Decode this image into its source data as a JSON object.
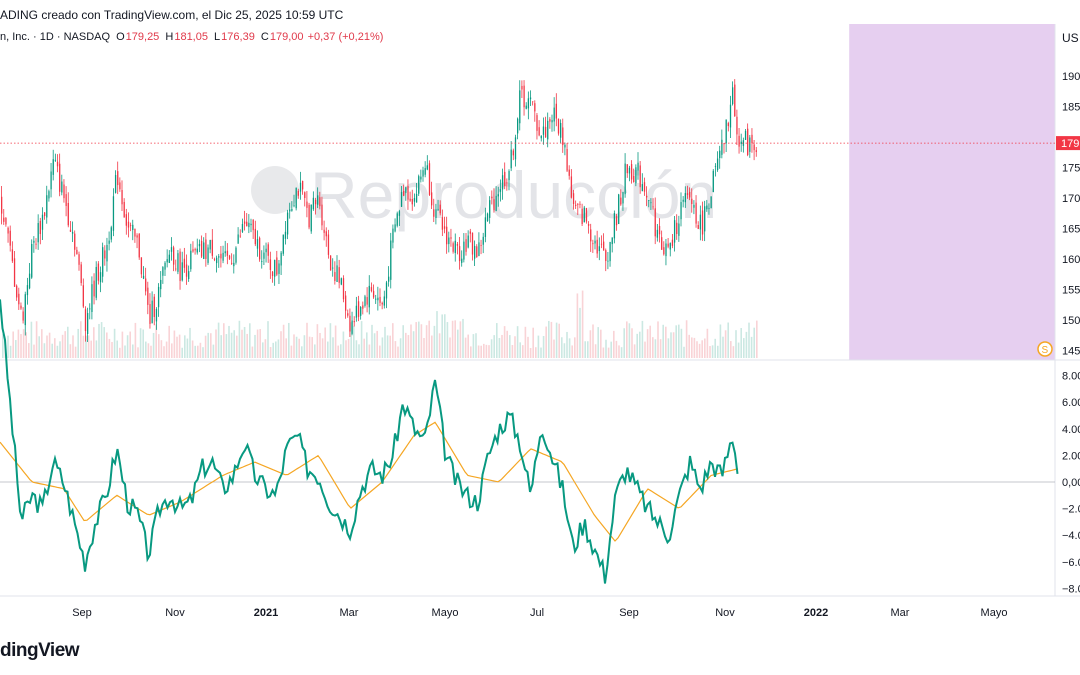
{
  "header": {
    "text": "ADING creado con TradingView.com, el Dic 25, 2025 10:59 UTC"
  },
  "legend": {
    "symbol": "n, Inc. · 1D · NASDAQ",
    "o_label": "O",
    "o": "179,25",
    "h_label": "H",
    "h": "181,05",
    "l_label": "L",
    "l": "176,39",
    "c_label": "C",
    "c": "179,00",
    "change": "+0,37 (+0,21%)"
  },
  "currency": "US",
  "watermark": "Reproducción",
  "brand": "dingView",
  "colors": {
    "up": "#089981",
    "down": "#f23645",
    "osc": "#089981",
    "signal": "#f5a623",
    "highlight": "#e6cff0",
    "last_price": "#f23645"
  },
  "chart_data": [
    {
      "type": "candlestick",
      "price_axis": {
        "ticks": [
          "190",
          "185",
          "180",
          "175",
          "170",
          "165",
          "160",
          "155",
          "150",
          "145"
        ],
        "ylim": [
          144,
          192
        ]
      },
      "last_price_label": "179",
      "current_price": 179.0,
      "x_axis": {
        "ticks": [
          "Sep",
          "Nov",
          "2021",
          "Mar",
          "Mayo",
          "Jul",
          "Sep",
          "Nov",
          "2022",
          "Mar",
          "Mayo"
        ],
        "bold_ticks": [
          "2021",
          "2022"
        ]
      },
      "price_path": [
        {
          "d": "2020-07-27",
          "c": 160
        },
        {
          "d": "2020-08-03",
          "c": 150
        },
        {
          "d": "2020-08-10",
          "c": 162
        },
        {
          "d": "2020-08-17",
          "c": 167
        },
        {
          "d": "2020-08-24",
          "c": 176
        },
        {
          "d": "2020-08-31",
          "c": 170
        },
        {
          "d": "2020-09-07",
          "c": 163
        },
        {
          "d": "2020-09-14",
          "c": 150
        },
        {
          "d": "2020-09-21",
          "c": 157
        },
        {
          "d": "2020-09-28",
          "c": 162
        },
        {
          "d": "2020-10-05",
          "c": 174
        },
        {
          "d": "2020-10-12",
          "c": 165
        },
        {
          "d": "2020-10-19",
          "c": 162
        },
        {
          "d": "2020-10-26",
          "c": 150
        },
        {
          "d": "2020-11-02",
          "c": 155
        },
        {
          "d": "2020-11-09",
          "c": 162
        },
        {
          "d": "2020-11-16",
          "c": 158
        },
        {
          "d": "2020-11-23",
          "c": 160
        },
        {
          "d": "2020-11-30",
          "c": 161
        },
        {
          "d": "2020-12-07",
          "c": 162
        },
        {
          "d": "2020-12-14",
          "c": 159
        },
        {
          "d": "2020-12-21",
          "c": 161
        },
        {
          "d": "2020-12-28",
          "c": 166
        },
        {
          "d": "2021-01-04",
          "c": 163
        },
        {
          "d": "2021-01-11",
          "c": 160
        },
        {
          "d": "2021-01-18",
          "c": 158
        },
        {
          "d": "2021-01-25",
          "c": 168
        },
        {
          "d": "2021-02-01",
          "c": 172
        },
        {
          "d": "2021-02-08",
          "c": 167
        },
        {
          "d": "2021-02-15",
          "c": 170
        },
        {
          "d": "2021-02-22",
          "c": 160
        },
        {
          "d": "2021-03-01",
          "c": 156
        },
        {
          "d": "2021-03-08",
          "c": 149
        },
        {
          "d": "2021-03-15",
          "c": 153
        },
        {
          "d": "2021-03-22",
          "c": 155
        },
        {
          "d": "2021-03-29",
          "c": 152
        },
        {
          "d": "2021-04-05",
          "c": 164
        },
        {
          "d": "2021-04-12",
          "c": 172
        },
        {
          "d": "2021-04-19",
          "c": 170
        },
        {
          "d": "2021-04-26",
          "c": 176
        },
        {
          "d": "2021-05-03",
          "c": 167
        },
        {
          "d": "2021-05-10",
          "c": 164
        },
        {
          "d": "2021-05-17",
          "c": 161
        },
        {
          "d": "2021-05-24",
          "c": 163
        },
        {
          "d": "2021-05-31",
          "c": 161
        },
        {
          "d": "2021-06-07",
          "c": 168
        },
        {
          "d": "2021-06-14",
          "c": 172
        },
        {
          "d": "2021-06-21",
          "c": 175
        },
        {
          "d": "2021-06-28",
          "c": 187
        },
        {
          "d": "2021-07-05",
          "c": 185
        },
        {
          "d": "2021-07-12",
          "c": 180
        },
        {
          "d": "2021-07-19",
          "c": 184
        },
        {
          "d": "2021-07-26",
          "c": 180
        },
        {
          "d": "2021-08-02",
          "c": 168
        },
        {
          "d": "2021-08-09",
          "c": 167
        },
        {
          "d": "2021-08-16",
          "c": 163
        },
        {
          "d": "2021-08-23",
          "c": 160
        },
        {
          "d": "2021-08-30",
          "c": 167
        },
        {
          "d": "2021-09-06",
          "c": 175
        },
        {
          "d": "2021-09-13",
          "c": 174
        },
        {
          "d": "2021-09-20",
          "c": 171
        },
        {
          "d": "2021-09-27",
          "c": 163
        },
        {
          "d": "2021-10-04",
          "c": 161
        },
        {
          "d": "2021-10-11",
          "c": 168
        },
        {
          "d": "2021-10-18",
          "c": 170
        },
        {
          "d": "2021-10-25",
          "c": 165
        },
        {
          "d": "2021-11-01",
          "c": 172
        },
        {
          "d": "2021-11-08",
          "c": 178
        },
        {
          "d": "2021-11-15",
          "c": 187
        },
        {
          "d": "2021-11-19",
          "c": 179
        }
      ],
      "volume": "light bars, peak near Jul 2021"
    },
    {
      "type": "line",
      "y_axis": {
        "ticks": [
          "8.00",
          "6.00",
          "4.00",
          "2.00",
          "0,00",
          "−2.00",
          "−4.00",
          "−6.00",
          "−8.00"
        ],
        "ylim": [
          -9,
          9
        ]
      },
      "series": [
        {
          "values": [
            [
              "2020-07-27",
              5.5
            ],
            [
              "2020-08-03",
              -3
            ],
            [
              "2020-08-10",
              -1
            ],
            [
              "2020-08-17",
              -2
            ],
            [
              "2020-08-24",
              1.5
            ],
            [
              "2020-08-31",
              0
            ],
            [
              "2020-09-07",
              -3
            ],
            [
              "2020-09-14",
              -6
            ],
            [
              "2020-09-21",
              -3
            ],
            [
              "2020-09-28",
              -1
            ],
            [
              "2020-10-05",
              2.5
            ],
            [
              "2020-10-12",
              -1.5
            ],
            [
              "2020-10-19",
              -2.5
            ],
            [
              "2020-10-26",
              -5.5
            ],
            [
              "2020-11-02",
              -2
            ],
            [
              "2020-11-09",
              -1
            ],
            [
              "2020-11-16",
              -2
            ],
            [
              "2020-11-23",
              -1.5
            ],
            [
              "2020-11-30",
              1
            ],
            [
              "2020-12-07",
              1.5
            ],
            [
              "2020-12-14",
              -0.5
            ],
            [
              "2020-12-21",
              0.5
            ],
            [
              "2020-12-28",
              3
            ],
            [
              "2021-01-04",
              0.5
            ],
            [
              "2021-01-11",
              -0.5
            ],
            [
              "2021-01-18",
              -1
            ],
            [
              "2021-01-25",
              2.5
            ],
            [
              "2021-02-01",
              3.5
            ],
            [
              "2021-02-08",
              1
            ],
            [
              "2021-02-15",
              0.5
            ],
            [
              "2021-02-22",
              -1.5
            ],
            [
              "2021-03-01",
              -2.5
            ],
            [
              "2021-03-08",
              -3.5
            ],
            [
              "2021-03-15",
              -0.5
            ],
            [
              "2021-03-22",
              1
            ],
            [
              "2021-03-29",
              0.5
            ],
            [
              "2021-04-05",
              2
            ],
            [
              "2021-04-12",
              6
            ],
            [
              "2021-04-19",
              4
            ],
            [
              "2021-04-26",
              3
            ],
            [
              "2021-05-03",
              7.5
            ],
            [
              "2021-05-10",
              2
            ],
            [
              "2021-05-17",
              0
            ],
            [
              "2021-05-24",
              -1
            ],
            [
              "2021-05-31",
              -1.5
            ],
            [
              "2021-06-07",
              2
            ],
            [
              "2021-06-14",
              4
            ],
            [
              "2021-06-21",
              5
            ],
            [
              "2021-06-28",
              3
            ],
            [
              "2021-07-05",
              -1
            ],
            [
              "2021-07-12",
              4.5
            ],
            [
              "2021-07-19",
              2
            ],
            [
              "2021-07-26",
              -0.5
            ],
            [
              "2021-08-02",
              -5
            ],
            [
              "2021-08-09",
              -3
            ],
            [
              "2021-08-16",
              -5
            ],
            [
              "2021-08-23",
              -7
            ],
            [
              "2021-08-30",
              -1
            ],
            [
              "2021-09-06",
              1
            ],
            [
              "2021-09-13",
              -0.5
            ],
            [
              "2021-09-20",
              -2
            ],
            [
              "2021-09-27",
              -3
            ],
            [
              "2021-10-04",
              -4
            ],
            [
              "2021-10-11",
              -1
            ],
            [
              "2021-10-18",
              1.5
            ],
            [
              "2021-10-25",
              -0.5
            ],
            [
              "2021-11-01",
              1.5
            ],
            [
              "2021-11-08",
              0.5
            ],
            [
              "2021-11-15",
              3.5
            ],
            [
              "2021-11-19",
              0.8
            ]
          ]
        },
        {
          "values": [
            [
              "2020-07-27",
              2
            ],
            [
              "2020-08-10",
              0
            ],
            [
              "2020-08-31",
              -0.5
            ],
            [
              "2020-09-14",
              -3
            ],
            [
              "2020-10-05",
              -1
            ],
            [
              "2020-10-26",
              -2.5
            ],
            [
              "2020-11-16",
              -1.5
            ],
            [
              "2020-12-14",
              0.5
            ],
            [
              "2021-01-04",
              1.5
            ],
            [
              "2021-01-25",
              0.5
            ],
            [
              "2021-02-15",
              2
            ],
            [
              "2021-03-08",
              -2
            ],
            [
              "2021-03-29",
              0
            ],
            [
              "2021-04-19",
              3.5
            ],
            [
              "2021-05-03",
              4.5
            ],
            [
              "2021-05-24",
              0.5
            ],
            [
              "2021-06-14",
              0
            ],
            [
              "2021-07-05",
              2.5
            ],
            [
              "2021-07-26",
              1.5
            ],
            [
              "2021-08-16",
              -2.5
            ],
            [
              "2021-08-30",
              -4.5
            ],
            [
              "2021-09-20",
              -0.5
            ],
            [
              "2021-10-11",
              -2
            ],
            [
              "2021-11-01",
              0.5
            ],
            [
              "2021-11-19",
              1
            ]
          ]
        }
      ]
    }
  ]
}
